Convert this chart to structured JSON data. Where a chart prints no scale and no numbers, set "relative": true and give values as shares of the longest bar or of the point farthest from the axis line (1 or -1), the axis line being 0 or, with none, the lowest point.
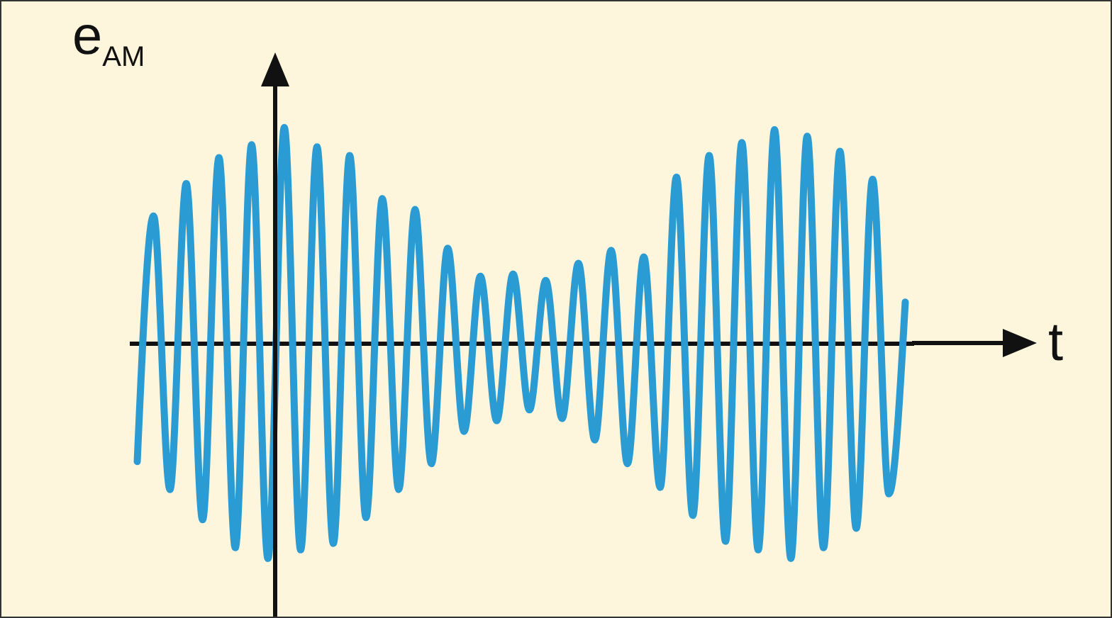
{
  "chart_data": {
    "type": "line",
    "relative": true,
    "xlabel": "t",
    "ylabel": "e$_{AM}$",
    "tick_labels": false,
    "line_style": "solid",
    "categories": [
      null,
      null,
      null,
      null,
      null,
      null,
      null,
      null,
      null,
      null,
      null,
      null,
      null,
      null,
      null,
      null,
      null,
      null,
      null,
      null,
      null,
      null,
      null,
      null,
      null,
      null,
      null,
      null,
      null,
      null,
      null,
      null,
      null,
      null,
      null,
      null,
      null,
      null,
      null,
      null,
      null,
      null,
      null,
      null,
      null,
      null,
      null,
      null
    ],
    "series": [
      {
        "color": "#2b9bd3",
        "values": [
          -0.55,
          0.59,
          -0.68,
          0.74,
          -0.82,
          0.86,
          -0.95,
          0.92,
          -1.0,
          1.0,
          -0.96,
          0.91,
          -0.93,
          0.87,
          -0.81,
          0.67,
          -0.68,
          0.62,
          -0.56,
          0.44,
          -0.41,
          0.31,
          -0.36,
          0.32,
          -0.31,
          0.29,
          -0.35,
          0.37,
          -0.45,
          0.43,
          -0.56,
          0.4,
          -0.67,
          0.77,
          -0.8,
          0.87,
          -0.92,
          0.93,
          -0.96,
          0.99,
          -1.0,
          0.96,
          -0.95,
          0.89,
          -0.86,
          0.76,
          -0.7,
          0.19
        ]
      }
    ]
  }
}
